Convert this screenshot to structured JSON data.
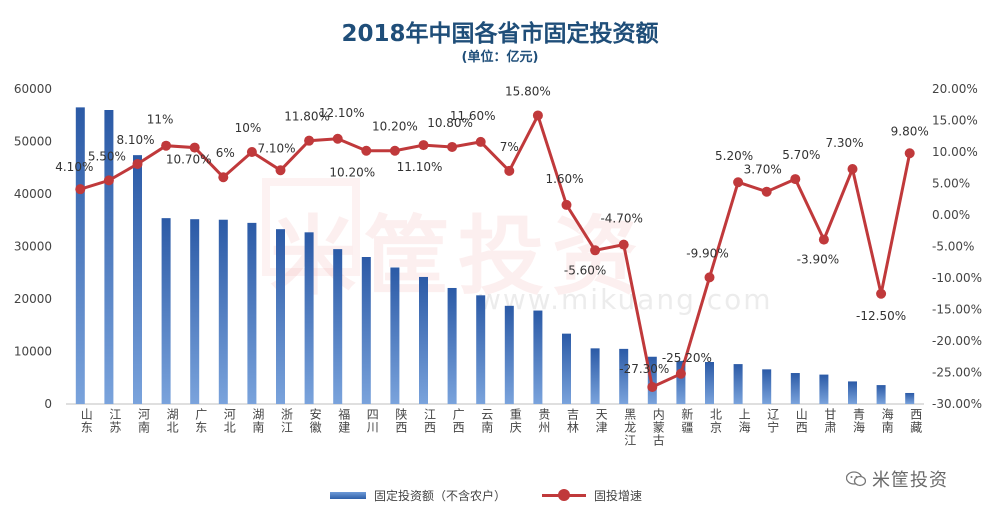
{
  "title": "2018年中国各省市固定投资额",
  "subtitle": "(单位：亿元)",
  "watermark": {
    "text": "米筐投资",
    "url": "www.mikuang.com"
  },
  "brand": {
    "text": "米筐投资",
    "icon": "chat-bubble-icon"
  },
  "colors": {
    "bar": "#2e5fa8",
    "line": "#c0393b"
  },
  "chart_data": {
    "type": "bar+line",
    "categories": [
      "山东",
      "江苏",
      "河南",
      "湖北",
      "广东",
      "河北",
      "湖南",
      "浙江",
      "安徽",
      "福建",
      "四川",
      "陕西",
      "江西",
      "广西",
      "云南",
      "重庆",
      "贵州",
      "吉林",
      "天津",
      "黑龙江",
      "内蒙古",
      "新疆",
      "北京",
      "上海",
      "辽宁",
      "山西",
      "甘肃",
      "青海",
      "海南",
      "西藏"
    ],
    "series": [
      {
        "name": "固定投资额（不含农户）",
        "type": "bar",
        "axis": "left",
        "values": [
          56500,
          56000,
          47400,
          35400,
          35200,
          35100,
          34500,
          33300,
          32700,
          29500,
          28000,
          26000,
          24200,
          22100,
          20700,
          18700,
          17800,
          13400,
          10600,
          10500,
          9000,
          8200,
          8000,
          7600,
          6600,
          5900,
          5600,
          4300,
          3600,
          2100
        ]
      },
      {
        "name": "固投增速",
        "type": "line",
        "axis": "right",
        "values": [
          4.1,
          5.5,
          8.1,
          11,
          10.7,
          6,
          10,
          7.1,
          11.8,
          12.1,
          10.2,
          10.2,
          11.1,
          10.8,
          11.6,
          7,
          15.8,
          1.6,
          -5.6,
          -4.7,
          -27.3,
          -25.2,
          -9.9,
          5.2,
          3.7,
          5.7,
          -3.9,
          7.3,
          -12.5,
          9.8
        ],
        "labels": [
          "4.10%",
          "5.50%",
          "8.10%",
          "11%",
          "10.70%",
          "6%",
          "10%",
          "7.10%",
          "11.80%",
          "12.10%",
          "10.20%",
          "10.20%",
          "11.10%",
          "10.80%",
          "11.60%",
          "7%",
          "15.80%",
          "1.60%",
          "-5.60%",
          "-4.70%",
          "-27.30%",
          "-25.20%",
          "-9.90%",
          "5.20%",
          "3.70%",
          "5.70%",
          "-3.90%",
          "7.30%",
          "-12.50%",
          "9.80%"
        ]
      }
    ],
    "y_left": {
      "min": 0,
      "max": 60000,
      "ticks": [
        "0",
        "10000",
        "20000",
        "30000",
        "40000",
        "50000",
        "60000"
      ]
    },
    "y_right": {
      "min": -30,
      "max": 20,
      "ticks": [
        "-30.00%",
        "-25.00%",
        "-20.00%",
        "-15.00%",
        "-10.00%",
        "-5.00%",
        "0.00%",
        "5.00%",
        "10.00%",
        "15.00%",
        "20.00%"
      ]
    },
    "grid": false,
    "legend_position": "bottom"
  }
}
